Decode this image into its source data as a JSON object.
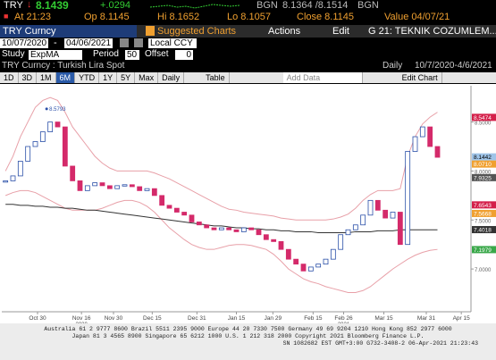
{
  "header": {
    "ticker": "TRY",
    "last": "8.1439",
    "change": "+.0294",
    "source": "BGN",
    "bid_ask": "8.1364 /8.1514",
    "source2": "BGN",
    "time": "At 21:23",
    "open": "Op 8.1145",
    "high": "Hi 8.1652",
    "low": "Lo 8.1057",
    "close": "Close 8.1145",
    "value_date": "Value 04/07/21"
  },
  "toolbar": {
    "security": "TRY Curncy",
    "suggested": "Suggested Charts",
    "actions": "Actions",
    "edit": "Edit",
    "page": "G 21: TEKNIK COZUMLEM..."
  },
  "controls": {
    "start": "10/07/2020",
    "dash": "-",
    "end": "04/06/2021",
    "currency": "Local CCY",
    "study_label": "Study",
    "study": "ExpMA",
    "period_label": "Period",
    "period": "50",
    "offset_label": "Offset",
    "offset": "0"
  },
  "info": {
    "name": "TRY Curncy : Turkish Lira Spot",
    "frequency": "Daily",
    "range": "10/7/2020-4/6/2021"
  },
  "buttons": [
    "1D",
    "3D",
    "1M",
    "6M",
    "YTD",
    "1Y",
    "5Y",
    "Max",
    "Daily",
    "Table",
    "Add Data",
    "Edit Chart"
  ],
  "chart_data": {
    "type": "candlestick",
    "x": [
      0,
      1,
      2,
      3,
      4,
      5,
      6,
      7,
      8,
      9,
      10,
      11,
      12,
      13,
      14,
      15,
      16,
      17,
      18,
      19,
      20,
      21,
      22,
      23,
      24,
      25,
      26,
      27,
      28,
      29,
      30,
      31,
      32,
      33,
      34,
      35,
      36,
      37,
      38,
      39,
      40,
      41,
      42,
      43,
      44,
      45,
      46,
      47,
      48,
      49,
      50,
      51,
      52,
      53,
      54,
      55,
      56,
      57,
      58
    ],
    "xlim": [
      -0.5,
      62.5
    ],
    "xticks": [
      {
        "value": 4.3,
        "label": "Oct 30"
      },
      {
        "value": 10.2,
        "label": "Nov 16"
      },
      {
        "value": 14.5,
        "label": "Nov 30"
      },
      {
        "value": 19.7,
        "label": "Dec 15"
      },
      {
        "value": 25.7,
        "label": "Dec 31"
      },
      {
        "value": 31,
        "label": "Jan 15"
      },
      {
        "value": 35.9,
        "label": "Jan 29"
      },
      {
        "value": 41.3,
        "label": "Feb 15"
      },
      {
        "value": 45.4,
        "label": "Feb 26"
      },
      {
        "value": 50.8,
        "label": "Mar 15"
      },
      {
        "value": 56.5,
        "label": "Mar 31"
      },
      {
        "value": 61.2,
        "label": "Apr 15"
      }
    ],
    "years": [
      {
        "value": 10.2,
        "label": "2020"
      },
      {
        "value": 45.4,
        "label": "2021"
      }
    ],
    "ylim": [
      6.6,
      8.87
    ],
    "yticks": [
      {
        "value": 8.5,
        "label": "8.5000"
      },
      {
        "value": 8,
        "label": "8.0000"
      },
      {
        "value": 7.5,
        "label": "7.5000"
      },
      {
        "value": 7,
        "label": "7.0000"
      }
    ],
    "up_color": "#2a4fa8",
    "down_color": "#d42a6a",
    "values": [
      7.9,
      7.95,
      8.1,
      8.25,
      8.3,
      8.4,
      8.5,
      8.45,
      8.05,
      7.9,
      7.8,
      7.85,
      7.88,
      7.85,
      7.82,
      7.85,
      7.86,
      7.84,
      7.8,
      7.82,
      7.75,
      7.65,
      7.62,
      7.58,
      7.55,
      7.48,
      7.45,
      7.42,
      7.4,
      7.42,
      7.4,
      7.38,
      7.42,
      7.4,
      7.35,
      7.3,
      7.28,
      7.2,
      7.1,
      7.05,
      6.98,
      7.02,
      7.05,
      7.1,
      7.2,
      7.35,
      7.4,
      7.45,
      7.55,
      7.7,
      7.6,
      7.52,
      7.58,
      7.25,
      8.2,
      8.35,
      8.45,
      8.25,
      8.14
    ],
    "series": [
      {
        "color": "#e8a0a8",
        "values": [
          8.0,
          8.15,
          8.35,
          8.5,
          8.65,
          8.72,
          8.75,
          8.72,
          8.6,
          8.45,
          8.35,
          8.25,
          8.15,
          8.08,
          8.03,
          8.0,
          8.0,
          8.0,
          8.0,
          8.0,
          7.98,
          7.95,
          7.92,
          7.88,
          7.84,
          7.8,
          7.76,
          7.72,
          7.68,
          7.64,
          7.61,
          7.6,
          7.58,
          7.57,
          7.56,
          7.55,
          7.54,
          7.52,
          7.51,
          7.5,
          7.5,
          7.5,
          7.5,
          7.5,
          7.51,
          7.53,
          7.56,
          7.62,
          7.7,
          7.76,
          7.8,
          7.8,
          7.8,
          7.82,
          8.15,
          8.35,
          8.48,
          8.55,
          8.6
        ]
      },
      {
        "color": "#e8a0a8",
        "values": [
          7.75,
          7.78,
          7.8,
          7.8,
          7.78,
          7.74,
          7.7,
          7.66,
          7.62,
          7.6,
          7.6,
          7.6,
          7.6,
          7.62,
          7.65,
          7.68,
          7.7,
          7.7,
          7.68,
          7.64,
          7.58,
          7.5,
          7.42,
          7.36,
          7.3,
          7.25,
          7.22,
          7.2,
          7.2,
          7.22,
          7.24,
          7.25,
          7.25,
          7.24,
          7.22,
          7.2,
          7.15,
          7.08,
          7.0,
          6.95,
          6.9,
          6.87,
          6.85,
          6.82,
          6.8,
          6.78,
          6.76,
          6.76,
          6.78,
          6.82,
          6.88,
          6.94,
          7.0,
          7.05,
          7.1,
          7.14,
          7.17,
          7.19,
          7.2
        ]
      },
      {
        "color": "#333333",
        "values": [
          7.66,
          7.66,
          7.65,
          7.65,
          7.64,
          7.64,
          7.63,
          7.63,
          7.62,
          7.62,
          7.61,
          7.6,
          7.6,
          7.59,
          7.58,
          7.57,
          7.56,
          7.55,
          7.54,
          7.53,
          7.52,
          7.51,
          7.5,
          7.49,
          7.48,
          7.47,
          7.46,
          7.45,
          7.44,
          7.44,
          7.43,
          7.42,
          7.42,
          7.41,
          7.41,
          7.4,
          7.4,
          7.39,
          7.39,
          7.38,
          7.38,
          7.38,
          7.37,
          7.37,
          7.37,
          7.37,
          7.37,
          7.38,
          7.38,
          7.38,
          7.39,
          7.39,
          7.39,
          7.4,
          7.4,
          7.4,
          7.4,
          7.4,
          7.4
        ]
      }
    ],
    "annotation": {
      "x": 6,
      "value": 8.5793
    },
    "price_flags": [
      {
        "value": 8.5474,
        "label": "8.5474",
        "color": "#d4204a"
      },
      {
        "value": 8.1442,
        "label": "8.1442",
        "color": "#9fc4e8"
      },
      {
        "value": 8.071,
        "label": "8.0710",
        "color": "#f0a030"
      },
      {
        "value": 7.9325,
        "label": "7.9325",
        "color": "#555555"
      },
      {
        "value": 7.6543,
        "label": "7.6543",
        "color": "#d4204a"
      },
      {
        "value": 7.5668,
        "label": "7.5668",
        "color": "#f0a030"
      },
      {
        "value": 7.4018,
        "label": "7.4018",
        "color": "#333333"
      },
      {
        "value": 7.1979,
        "label": "7.1979",
        "color": "#3aa84a"
      }
    ]
  },
  "footer": [
    "Australia 61 2 9777 8600  Brazil 5511 2395 9000  Europe 44 20 7330 7500  Germany 49 69 9204 1210  Hong Kong 852 2977 6000",
    "Japan 81 3 4565 8900        Singapore 65 6212 1000        U.S. 1 212 318 2000        Copyright 2021 Bloomberg Finance L.P.",
    "SN 1082682 EST  GMT+3:00 G732-3408-2  06-Apr-2021 21:23:43"
  ]
}
